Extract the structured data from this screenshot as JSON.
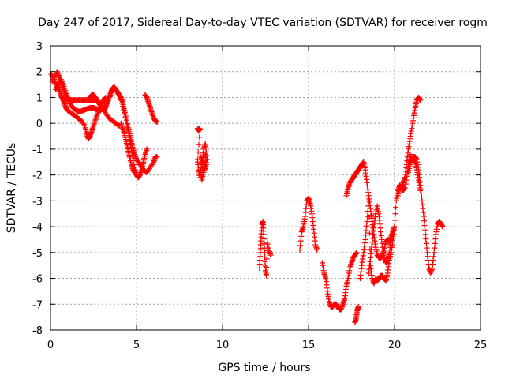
{
  "chart_data": {
    "type": "scatter",
    "title": "Day 247 of 2017, Sidereal Day-to-day VTEC variation (SDTVAR) for receiver rogm",
    "xlabel": "GPS time / hours",
    "ylabel": "SDTVAR / TECUs",
    "xlim": [
      0,
      25
    ],
    "ylim": [
      -8,
      3
    ],
    "xticks": [
      0,
      5,
      10,
      15,
      20,
      25
    ],
    "yticks": [
      -8,
      -7,
      -6,
      -5,
      -4,
      -3,
      -2,
      -1,
      0,
      1,
      2,
      3
    ],
    "grid": true,
    "marker": "plus",
    "color": "#ff0000",
    "series": [
      {
        "name": "SDTVAR",
        "segments": [
          {
            "x": [
              0.05,
              0.2,
              0.35,
              0.5,
              0.6,
              0.7,
              0.8,
              0.9,
              1.0,
              1.2,
              1.4,
              1.6,
              1.8,
              2.0,
              2.1,
              2.2,
              2.3,
              2.4,
              2.5,
              2.6,
              2.7,
              2.8,
              2.9,
              3.0,
              3.1,
              3.2
            ],
            "y": [
              1.9,
              1.7,
              1.5,
              1.3,
              1.1,
              0.95,
              0.8,
              0.6,
              0.5,
              0.4,
              0.3,
              0.2,
              0.1,
              -0.1,
              -0.4,
              -0.6,
              -0.5,
              -0.3,
              -0.1,
              0.1,
              0.3,
              0.5,
              0.6,
              0.8,
              0.9,
              1.0
            ]
          },
          {
            "x": [
              0.1,
              0.25,
              0.4,
              0.5,
              0.6,
              0.7,
              0.8,
              0.9,
              1.0,
              1.2,
              1.4,
              1.6,
              1.8,
              2.0,
              2.2,
              2.4,
              2.6,
              2.8,
              3.0,
              3.2,
              3.4,
              3.6,
              3.8,
              4.0
            ],
            "y": [
              1.6,
              1.8,
              2.0,
              1.8,
              1.6,
              1.4,
              1.2,
              1.0,
              0.95,
              0.9,
              0.9,
              0.9,
              0.9,
              0.9,
              0.9,
              0.9,
              0.9,
              0.8,
              0.6,
              0.4,
              0.2,
              0.1,
              0.0,
              -0.1
            ]
          },
          {
            "x": [
              0.3,
              0.45,
              0.6,
              0.75,
              0.9,
              1.0,
              1.1,
              1.3,
              1.5,
              1.7,
              1.9,
              2.1,
              2.3,
              2.5,
              2.7,
              2.9,
              3.1,
              3.3,
              3.5,
              3.7,
              3.9,
              4.1,
              4.3,
              4.5,
              4.7,
              4.85,
              5.0,
              5.1,
              5.2,
              5.3,
              5.4,
              5.5,
              5.6
            ],
            "y": [
              1.3,
              1.5,
              1.7,
              1.5,
              1.2,
              1.0,
              0.8,
              0.6,
              0.5,
              0.45,
              0.5,
              0.55,
              0.6,
              0.6,
              0.55,
              0.5,
              0.6,
              0.8,
              1.1,
              1.4,
              1.2,
              0.9,
              0.4,
              -0.3,
              -1.0,
              -1.6,
              -2.0,
              -2.1,
              -2.0,
              -1.8,
              -1.5,
              -1.2,
              -1.0
            ]
          },
          {
            "x": [
              2.3,
              2.4,
              2.5,
              2.6,
              2.7,
              2.8,
              2.9,
              3.0,
              3.1,
              3.2,
              3.3,
              3.4,
              3.5,
              3.6,
              3.7,
              3.8,
              3.9,
              4.0,
              4.1,
              4.2,
              4.3,
              4.4,
              4.5,
              4.6,
              4.7,
              4.8,
              4.9,
              5.0,
              5.2,
              5.4,
              5.6,
              5.8,
              6.0,
              6.1,
              6.2
            ],
            "y": [
              1.0,
              1.1,
              1.1,
              1.0,
              0.9,
              0.8,
              0.7,
              0.6,
              0.5,
              0.6,
              0.8,
              1.0,
              1.2,
              1.35,
              1.4,
              1.3,
              1.2,
              1.1,
              1.0,
              0.8,
              0.5,
              0.2,
              -0.1,
              -0.4,
              -0.7,
              -1.0,
              -1.2,
              -1.4,
              -1.6,
              -1.8,
              -1.9,
              -1.7,
              -1.5,
              -1.3,
              -1.3
            ]
          },
          {
            "x": [
              4.1,
              4.2,
              4.3,
              4.4,
              4.5,
              4.6,
              4.7,
              4.8,
              4.9
            ],
            "y": [
              0.0,
              -0.2,
              -0.4,
              -0.7,
              -1.0,
              -1.3,
              -1.6,
              -1.8,
              -1.9
            ]
          },
          {
            "x": [
              5.5,
              5.6,
              5.7,
              5.8,
              5.9,
              6.0,
              6.1,
              6.2
            ],
            "y": [
              1.1,
              1.0,
              0.8,
              0.6,
              0.4,
              0.2,
              0.1,
              0.05
            ]
          },
          {
            "x": [
              8.55,
              8.6,
              8.65,
              8.7,
              8.55,
              8.6,
              8.7,
              8.8,
              8.9,
              9.0,
              9.1,
              8.9,
              8.8,
              8.7,
              9.0,
              9.05,
              8.95,
              8.85,
              8.75
            ],
            "y": [
              -0.2,
              -0.3,
              -0.2,
              -0.25,
              -1.4,
              -1.8,
              -2.1,
              -1.6,
              -1.0,
              -0.8,
              -1.4,
              -1.9,
              -2.2,
              -1.7,
              -1.2,
              -1.6,
              -1.8,
              -1.5,
              -1.3
            ]
          },
          {
            "x": [
              12.15,
              12.2,
              12.25,
              12.3,
              12.35,
              12.4,
              12.45,
              12.5,
              12.55,
              12.6,
              12.7,
              12.8
            ],
            "y": [
              -5.6,
              -5.0,
              -4.4,
              -3.9,
              -3.8,
              -4.3,
              -5.0,
              -5.7,
              -5.9,
              -4.6,
              -4.9,
              -5.1
            ]
          },
          {
            "x": [
              14.5,
              14.6,
              14.7,
              14.8,
              14.9,
              15.0,
              15.1,
              15.2,
              15.3,
              15.4,
              15.5
            ],
            "y": [
              -4.9,
              -4.2,
              -4.0,
              -3.6,
              -3.0,
              -2.9,
              -3.1,
              -3.5,
              -4.1,
              -4.7,
              -4.9
            ]
          },
          {
            "x": [
              15.8,
              15.9,
              16.0,
              16.1,
              16.2,
              16.3,
              16.4,
              16.5,
              16.6,
              16.7,
              16.8,
              16.9,
              17.0,
              17.1,
              17.2,
              17.3,
              17.4,
              17.5,
              17.6,
              17.7,
              17.8
            ],
            "y": [
              -5.4,
              -5.8,
              -6.0,
              -6.5,
              -6.9,
              -7.1,
              -7.1,
              -7.0,
              -7.0,
              -7.1,
              -7.2,
              -7.2,
              -7.0,
              -6.8,
              -6.3,
              -6.0,
              -5.6,
              -5.4,
              -5.2,
              -5.1,
              -5.0
            ]
          },
          {
            "x": [
              17.7,
              17.75,
              17.8,
              17.85,
              17.9
            ],
            "y": [
              -7.7,
              -7.6,
              -7.4,
              -7.2,
              -7.1
            ]
          },
          {
            "x": [
              17.2,
              17.3,
              17.4,
              17.5,
              17.6,
              17.7,
              17.8,
              17.9,
              18.0,
              18.1,
              18.2,
              18.3,
              18.4,
              18.5,
              18.6,
              18.7,
              18.8,
              18.9,
              19.0,
              19.1,
              19.2,
              19.3,
              19.4,
              19.5,
              19.6,
              19.7,
              19.8,
              19.9,
              20.0
            ],
            "y": [
              -2.8,
              -2.5,
              -2.3,
              -2.2,
              -2.1,
              -2.0,
              -1.9,
              -1.8,
              -1.7,
              -1.6,
              -1.5,
              -1.8,
              -2.3,
              -2.8,
              -3.3,
              -3.8,
              -4.3,
              -4.8,
              -5.1,
              -5.2,
              -5.2,
              -5.1,
              -4.9,
              -4.6,
              -4.5,
              -4.6,
              -4.4,
              -4.2,
              -4.0
            ]
          },
          {
            "x": [
              18.0,
              18.1,
              18.2,
              18.3,
              18.4,
              18.5,
              18.6,
              18.7,
              18.8,
              18.9,
              19.0,
              19.1,
              19.2,
              19.3,
              19.4,
              19.5,
              19.6,
              19.7,
              19.8,
              19.9,
              20.0,
              20.1,
              20.2,
              20.3,
              20.4,
              20.5,
              20.6,
              20.7,
              20.8,
              20.9,
              21.0,
              21.1,
              21.2,
              21.3,
              21.4,
              21.5
            ],
            "y": [
              -6.0,
              -5.5,
              -5.0,
              -4.5,
              -3.8,
              -3.0,
              -5.5,
              -6.0,
              -6.2,
              -6.0,
              -6.1,
              -6.0,
              -5.9,
              -5.9,
              -6.0,
              -6.1,
              -5.8,
              -5.3,
              -5.0,
              -4.6,
              -4.0,
              -3.0,
              -2.6,
              -2.4,
              -2.5,
              -2.3,
              -2.1,
              -1.6,
              -1.0,
              -0.6,
              -0.2,
              0.2,
              0.6,
              0.9,
              1.0,
              0.9
            ]
          },
          {
            "x": [
              20.2,
              20.3,
              20.4,
              20.5,
              20.6,
              20.7,
              20.8,
              20.9,
              21.0,
              21.1,
              21.2,
              21.3,
              21.4,
              21.5,
              21.6,
              21.7,
              21.8,
              21.9,
              22.0,
              22.1,
              22.2,
              22.3,
              22.4,
              22.5,
              22.6,
              22.7,
              22.8
            ],
            "y": [
              -2.8,
              -2.5,
              -2.5,
              -2.6,
              -2.5,
              -2.2,
              -1.6,
              -1.2,
              -1.4,
              -1.3,
              -1.3,
              -1.4,
              -1.8,
              -2.4,
              -3.0,
              -3.6,
              -4.3,
              -5.0,
              -5.6,
              -5.8,
              -5.6,
              -5.0,
              -4.3,
              -3.9,
              -3.8,
              -3.9,
              -4.0
            ]
          },
          {
            "x": [
              18.5,
              18.6,
              18.7,
              18.8,
              18.9,
              19.0,
              19.1,
              19.2,
              19.3,
              19.4,
              19.5,
              19.6,
              19.7,
              19.8,
              19.9
            ],
            "y": [
              -5.8,
              -5.2,
              -4.6,
              -4.0,
              -3.5,
              -3.2,
              -3.6,
              -4.2,
              -4.8,
              -5.2,
              -5.4,
              -5.3,
              -5.0,
              -4.6,
              -4.3
            ]
          },
          {
            "x": [
              20.8,
              20.9,
              21.0,
              21.1,
              21.2,
              21.3,
              21.4,
              21.5
            ],
            "y": [
              -1.9,
              -1.6,
              -1.4,
              -1.3,
              -1.5,
              -1.8,
              -2.2,
              -2.6
            ]
          }
        ]
      }
    ]
  }
}
